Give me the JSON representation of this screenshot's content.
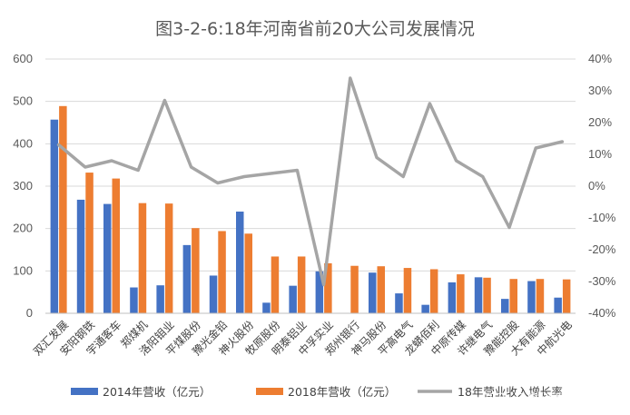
{
  "chart_data": {
    "type": "bar",
    "title": "图3-2-6:18年河南省前20大公司发展情况",
    "categories": [
      "双汇发展",
      "安阳钢铁",
      "宇通客车",
      "郑煤机",
      "洛阳钼业",
      "平煤股份",
      "豫光金铅",
      "神火股份",
      "牧原股份",
      "明泰铝业",
      "中孚实业",
      "郑州银行",
      "神马股份",
      "平高电气",
      "龙蟒佰利",
      "中原传媒",
      "许继电气",
      "豫能控股",
      "大有能源",
      "中航光电"
    ],
    "series": [
      {
        "name": "2014年营收（亿元）",
        "type": "bar",
        "axis": "left",
        "color": "#4472C4",
        "values": [
          457,
          268,
          258,
          61,
          66,
          161,
          89,
          240,
          25,
          65,
          99,
          null,
          96,
          47,
          20,
          73,
          85,
          34,
          76,
          37
        ]
      },
      {
        "name": "2018年营收（亿元）",
        "type": "bar",
        "axis": "left",
        "color": "#ED7D31",
        "values": [
          489,
          332,
          318,
          260,
          259,
          201,
          194,
          188,
          134,
          134,
          118,
          112,
          111,
          107,
          104,
          92,
          84,
          81,
          81,
          80
        ]
      },
      {
        "name": "18年营业收入增长率",
        "type": "line",
        "axis": "right",
        "color": "#A5A5A5",
        "values": [
          13,
          6,
          8,
          5,
          27,
          6,
          1,
          3,
          4,
          5,
          -31,
          34,
          9,
          3,
          26,
          8,
          3,
          -13,
          12,
          14
        ]
      }
    ],
    "left_axis": {
      "min": 0,
      "max": 600,
      "step": 100,
      "ticks": [
        "0",
        "100",
        "200",
        "300",
        "400",
        "500",
        "600"
      ]
    },
    "right_axis": {
      "min": -40,
      "max": 40,
      "step": 10,
      "ticks": [
        "-40%",
        "-30%",
        "-20%",
        "-10%",
        "0%",
        "10%",
        "20%",
        "30%",
        "40%"
      ]
    },
    "grid": true,
    "legend_position": "bottom"
  },
  "watermark": "知乎 @数海听涛"
}
